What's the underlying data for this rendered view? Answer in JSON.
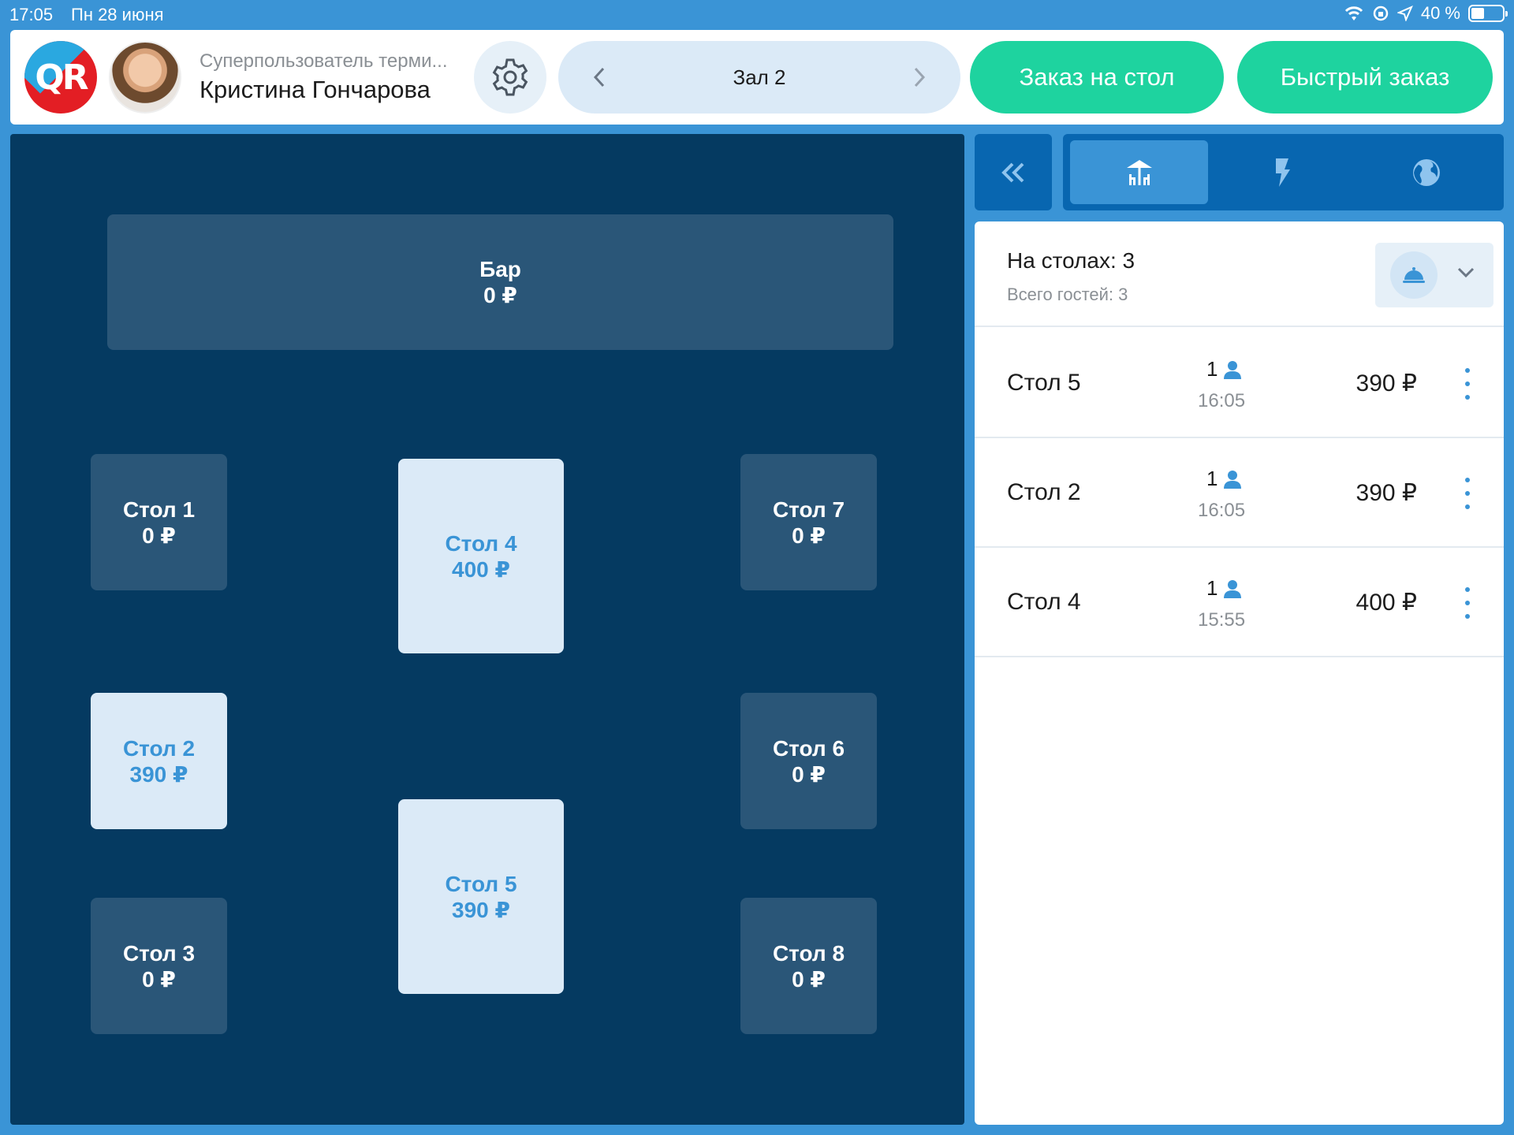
{
  "status_bar": {
    "time": "17:05",
    "date": "Пн 28 июня",
    "battery": "40 %"
  },
  "header": {
    "logo_text": "QR",
    "user_role": "Суперпользователь терми...",
    "user_name": "Кристина Гончарова",
    "hall": "Зал 2",
    "table_order_label": "Заказ на стол",
    "quick_order_label": "Быстрый заказ"
  },
  "floor": {
    "bar": {
      "name": "Бар",
      "amount": "0 ₽"
    },
    "tables": [
      {
        "name": "Стол 1",
        "amount": "0 ₽",
        "status": "free"
      },
      {
        "name": "Стол 4",
        "amount": "400 ₽",
        "status": "busy"
      },
      {
        "name": "Стол 7",
        "amount": "0 ₽",
        "status": "free"
      },
      {
        "name": "Стол 2",
        "amount": "390 ₽",
        "status": "busy"
      },
      {
        "name": "Стол 6",
        "amount": "0 ₽",
        "status": "free"
      },
      {
        "name": "Стол 5",
        "amount": "390 ₽",
        "status": "busy"
      },
      {
        "name": "Стол 3",
        "amount": "0 ₽",
        "status": "free"
      },
      {
        "name": "Стол 8",
        "amount": "0 ₽",
        "status": "free"
      }
    ]
  },
  "panel": {
    "tabs": [
      {
        "icon": "tables-icon",
        "active": true
      },
      {
        "icon": "lightning-icon",
        "active": false
      },
      {
        "icon": "globe-icon",
        "active": false
      }
    ],
    "summary_title": "На столах: 3",
    "summary_sub": "Всего гостей: 3",
    "rows": [
      {
        "name": "Стол 5",
        "guests": "1",
        "time": "16:05",
        "amount": "390 ₽"
      },
      {
        "name": "Стол 2",
        "guests": "1",
        "time": "16:05",
        "amount": "390 ₽"
      },
      {
        "name": "Стол 4",
        "guests": "1",
        "time": "15:55",
        "amount": "400 ₽"
      }
    ]
  },
  "colors": {
    "background": "#3a94d6",
    "floor": "#053a61",
    "table_free": "#2a5678",
    "table_busy": "#dbeaf7",
    "accent_green": "#1ed39f",
    "accent_blue": "#3a94d6"
  }
}
